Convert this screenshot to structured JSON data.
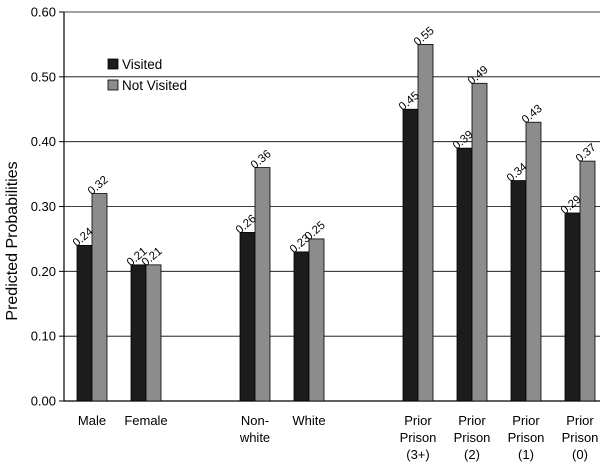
{
  "chart_data": {
    "type": "bar",
    "title": "",
    "xlabel": "",
    "ylabel": "Predicted Probabilities",
    "ylim": [
      0,
      0.6
    ],
    "yticks": [
      "0.00",
      "0.10",
      "0.20",
      "0.30",
      "0.40",
      "0.50",
      "0.60"
    ],
    "grid": true,
    "legend_position": "top-left",
    "categories": [
      [
        "Male"
      ],
      [
        "Female"
      ],
      [
        "Non-",
        "white"
      ],
      [
        "White"
      ],
      [
        "Prior",
        "Prison",
        "(3+)"
      ],
      [
        "Prior",
        "Prison",
        "(2)"
      ],
      [
        "Prior",
        "Prison",
        "(1)"
      ],
      [
        "Prior",
        "Prison",
        "(0)"
      ]
    ],
    "series": [
      {
        "name": "Visited",
        "color": "#1c1c1c",
        "values": [
          0.24,
          0.21,
          0.26,
          0.23,
          0.45,
          0.39,
          0.34,
          0.29
        ],
        "labels": [
          "0.24",
          "0.21",
          "0.26",
          "0.23",
          "0.45",
          "0.39",
          "0.34",
          "0.29"
        ]
      },
      {
        "name": "Not Visited",
        "color": "#8c8c8c",
        "values": [
          0.32,
          0.21,
          0.36,
          0.25,
          0.55,
          0.49,
          0.43,
          0.37
        ],
        "labels": [
          "0.32",
          "0.21",
          "0.36",
          "0.25",
          "0.55",
          "0.49",
          "0.43",
          "0.37"
        ]
      }
    ]
  }
}
